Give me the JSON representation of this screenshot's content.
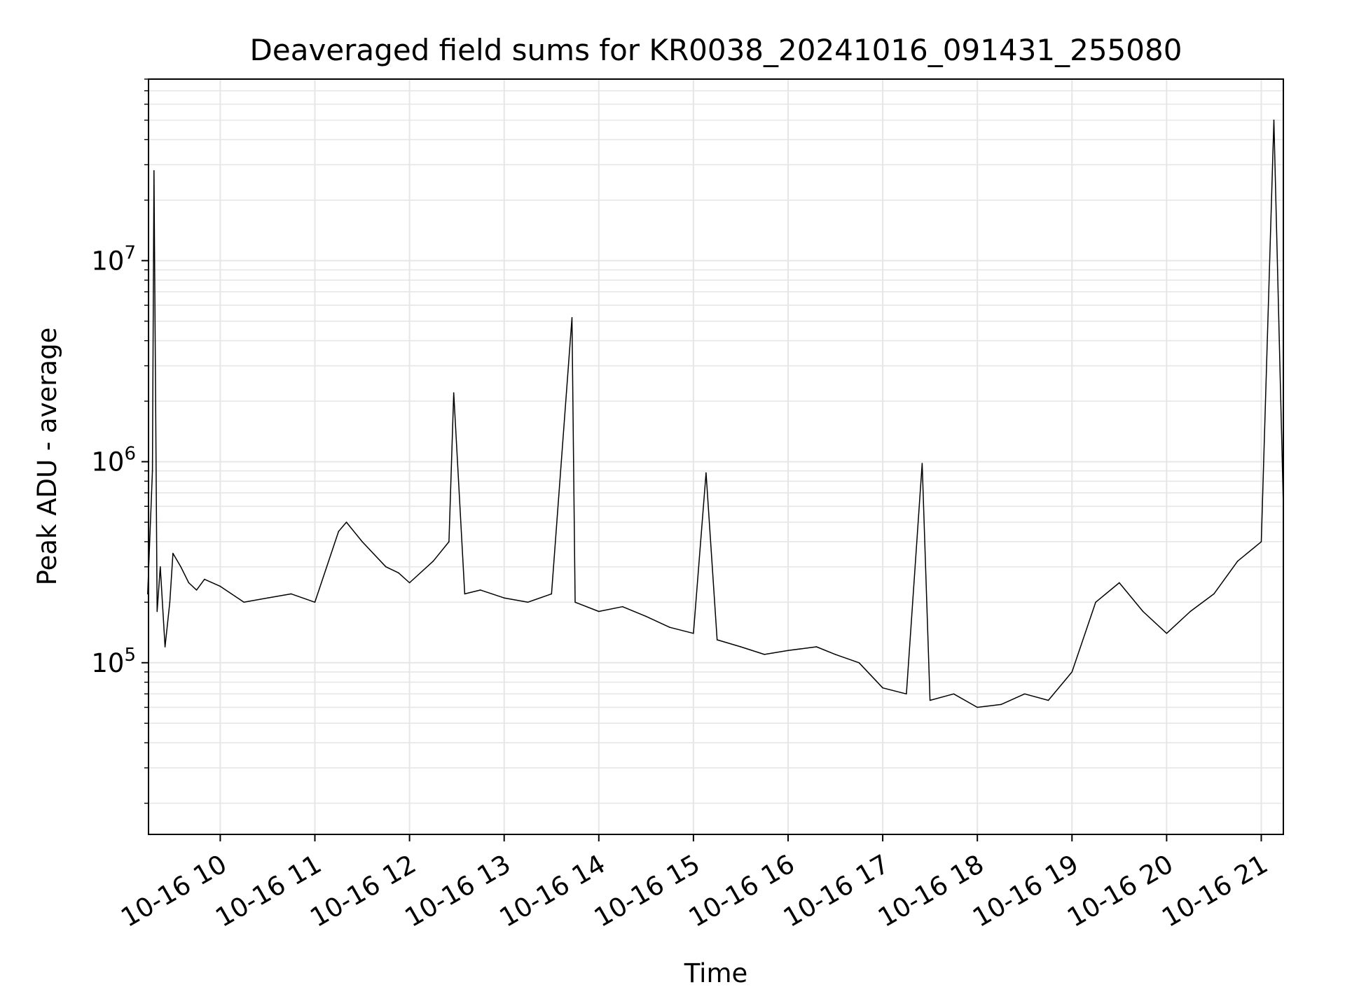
{
  "chart_data": {
    "type": "line",
    "title": "Deaveraged field sums for KR0038_20241016_091431_255080",
    "xlabel": "Time",
    "ylabel": "Peak ADU - average",
    "yscale": "log",
    "xlim": [
      "2024-10-16 09:14:31",
      "2024-10-16 21:14:00"
    ],
    "ylim": [
      14000,
      80000000
    ],
    "grid": true,
    "line_color": "#000000",
    "x_ticks": [
      {
        "value": "2024-10-16 10:00",
        "label": "10-16 10"
      },
      {
        "value": "2024-10-16 11:00",
        "label": "10-16 11"
      },
      {
        "value": "2024-10-16 12:00",
        "label": "10-16 12"
      },
      {
        "value": "2024-10-16 13:00",
        "label": "10-16 13"
      },
      {
        "value": "2024-10-16 14:00",
        "label": "10-16 14"
      },
      {
        "value": "2024-10-16 15:00",
        "label": "10-16 15"
      },
      {
        "value": "2024-10-16 16:00",
        "label": "10-16 16"
      },
      {
        "value": "2024-10-16 17:00",
        "label": "10-16 17"
      },
      {
        "value": "2024-10-16 18:00",
        "label": "10-16 18"
      },
      {
        "value": "2024-10-16 19:00",
        "label": "10-16 19"
      },
      {
        "value": "2024-10-16 20:00",
        "label": "10-16 20"
      },
      {
        "value": "2024-10-16 21:00",
        "label": "10-16 21"
      }
    ],
    "y_ticks": [
      {
        "value": 100000,
        "label_base": "10",
        "label_exp": "5"
      },
      {
        "value": 1000000,
        "label_base": "10",
        "label_exp": "6"
      },
      {
        "value": 10000000,
        "label_base": "10",
        "label_exp": "7"
      }
    ],
    "series": [
      {
        "x": [
          "2024-10-16 09:14",
          "2024-10-16 09:17",
          "2024-10-16 09:18",
          "2024-10-16 09:20",
          "2024-10-16 09:22",
          "2024-10-16 09:25",
          "2024-10-16 09:28",
          "2024-10-16 09:30",
          "2024-10-16 09:35",
          "2024-10-16 09:40",
          "2024-10-16 09:45",
          "2024-10-16 09:50",
          "2024-10-16 10:00",
          "2024-10-16 10:15",
          "2024-10-16 10:30",
          "2024-10-16 10:45",
          "2024-10-16 11:00",
          "2024-10-16 11:15",
          "2024-10-16 11:20",
          "2024-10-16 11:30",
          "2024-10-16 11:45",
          "2024-10-16 11:53",
          "2024-10-16 12:00",
          "2024-10-16 12:15",
          "2024-10-16 12:25",
          "2024-10-16 12:28",
          "2024-10-16 12:35",
          "2024-10-16 12:45",
          "2024-10-16 13:00",
          "2024-10-16 13:15",
          "2024-10-16 13:30",
          "2024-10-16 13:43",
          "2024-10-16 13:45",
          "2024-10-16 14:00",
          "2024-10-16 14:15",
          "2024-10-16 14:30",
          "2024-10-16 14:45",
          "2024-10-16 15:00",
          "2024-10-16 15:08",
          "2024-10-16 15:15",
          "2024-10-16 15:30",
          "2024-10-16 15:45",
          "2024-10-16 16:00",
          "2024-10-16 16:18",
          "2024-10-16 16:30",
          "2024-10-16 16:45",
          "2024-10-16 17:00",
          "2024-10-16 17:15",
          "2024-10-16 17:25",
          "2024-10-16 17:30",
          "2024-10-16 17:45",
          "2024-10-16 18:00",
          "2024-10-16 18:15",
          "2024-10-16 18:30",
          "2024-10-16 18:45",
          "2024-10-16 19:00",
          "2024-10-16 19:15",
          "2024-10-16 19:30",
          "2024-10-16 19:45",
          "2024-10-16 20:00",
          "2024-10-16 20:15",
          "2024-10-16 20:30",
          "2024-10-16 20:45",
          "2024-10-16 21:00",
          "2024-10-16 21:08",
          "2024-10-16 21:14"
        ],
        "y": [
          220000,
          900000,
          28000000,
          180000,
          300000,
          120000,
          200000,
          350000,
          300000,
          250000,
          230000,
          260000,
          240000,
          200000,
          210000,
          220000,
          200000,
          450000,
          500000,
          400000,
          300000,
          280000,
          250000,
          320000,
          400000,
          2200000,
          220000,
          230000,
          210000,
          200000,
          220000,
          5200000,
          200000,
          180000,
          190000,
          170000,
          150000,
          140000,
          880000,
          130000,
          120000,
          110000,
          115000,
          120000,
          110000,
          100000,
          75000,
          70000,
          980000,
          65000,
          70000,
          60000,
          62000,
          70000,
          65000,
          90000,
          200000,
          250000,
          180000,
          140000,
          180000,
          220000,
          320000,
          400000,
          50000000,
          600000
        ]
      }
    ]
  }
}
